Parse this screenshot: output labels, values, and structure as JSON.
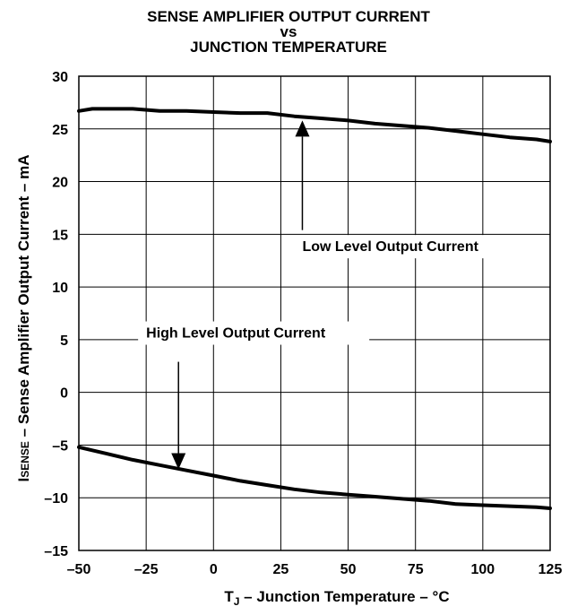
{
  "chart_data": {
    "type": "line",
    "title_lines": [
      "SENSE AMPLIFIER OUTPUT CURRENT",
      "vs",
      "JUNCTION TEMPERATURE"
    ],
    "ylabel_main": "I",
    "ylabel_sub": "SENSE",
    "ylabel_rest": " – Sense Amplifier Output Current – mA",
    "xlabel_main": "T",
    "xlabel_sub": "J",
    "xlabel_rest": " – Junction Temperature – °C",
    "xlim": [
      -50,
      125
    ],
    "ylim": [
      -15,
      30
    ],
    "x_ticks": [
      "-50",
      "-25",
      "0",
      "25",
      "50",
      "75",
      "100",
      "125"
    ],
    "x_tick_labels": [
      "–50",
      "–25",
      "0",
      "25",
      "50",
      "75",
      "100",
      "125"
    ],
    "y_ticks": [
      "-15",
      "-10",
      "-5",
      "0",
      "5",
      "10",
      "15",
      "20",
      "25",
      "30"
    ],
    "y_tick_labels": [
      "–15",
      "–10",
      "–5",
      "0",
      "5",
      "10",
      "15",
      "20",
      "25",
      "30"
    ],
    "grid": true,
    "series": [
      {
        "name": "Low Level Output Current",
        "x": [
          -50,
          -45,
          -40,
          -30,
          -20,
          -10,
          0,
          10,
          20,
          30,
          40,
          50,
          60,
          70,
          80,
          90,
          100,
          110,
          120,
          125
        ],
        "y": [
          26.7,
          26.9,
          26.9,
          26.9,
          26.7,
          26.7,
          26.6,
          26.5,
          26.5,
          26.2,
          26.0,
          25.8,
          25.5,
          25.3,
          25.1,
          24.8,
          24.5,
          24.2,
          24.0,
          23.8
        ]
      },
      {
        "name": "High Level Output Current",
        "x": [
          -50,
          -45,
          -40,
          -30,
          -20,
          -10,
          0,
          10,
          20,
          30,
          40,
          50,
          60,
          70,
          80,
          90,
          100,
          110,
          120,
          125
        ],
        "y": [
          -5.2,
          -5.5,
          -5.8,
          -6.4,
          -6.9,
          -7.4,
          -7.9,
          -8.4,
          -8.8,
          -9.2,
          -9.5,
          -9.7,
          -9.9,
          -10.1,
          -10.3,
          -10.6,
          -10.7,
          -10.8,
          -10.9,
          -11.0
        ]
      }
    ],
    "annotations": [
      {
        "text": "Low Level Output Current",
        "x": 33,
        "y": 13.4,
        "arrow_from": [
          33,
          15.4
        ],
        "arrow_to": [
          33,
          25.8
        ]
      },
      {
        "text": "High Level Output Current",
        "x": -25,
        "y": 5.2,
        "arrow_from": [
          -13,
          2.9
        ],
        "arrow_to": [
          -13,
          -7.3
        ]
      }
    ]
  }
}
